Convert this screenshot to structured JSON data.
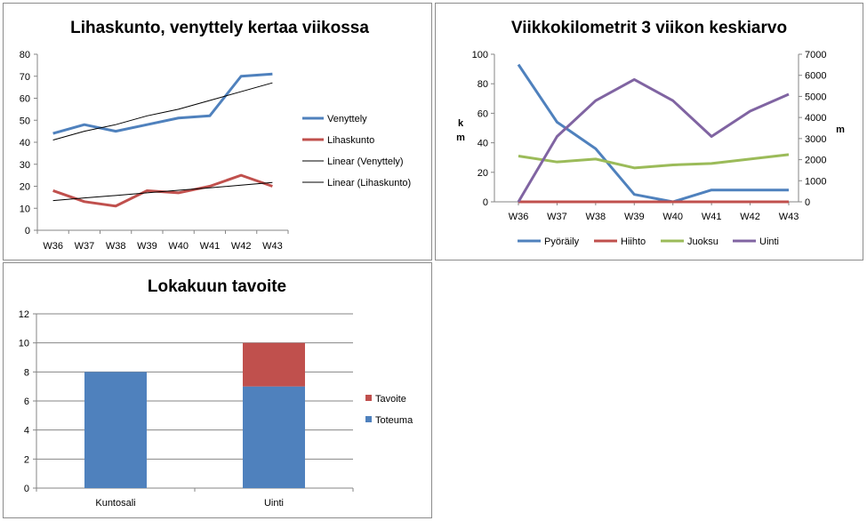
{
  "chart_data": [
    {
      "type": "line",
      "title": "Lihaskunto, venyttely kertaa viikossa",
      "categories": [
        "W36",
        "W37",
        "W38",
        "W39",
        "W40",
        "W41",
        "W42",
        "W43"
      ],
      "ylim": [
        0,
        80
      ],
      "yticks": [
        "0",
        "10",
        "20",
        "30",
        "40",
        "50",
        "60",
        "70",
        "80"
      ],
      "series": [
        {
          "name": "Venyttely",
          "color": "#4f81bd",
          "values": [
            44,
            48,
            45,
            48,
            51,
            52,
            70,
            71
          ]
        },
        {
          "name": "Lihaskunto",
          "color": "#c0504d",
          "values": [
            18,
            13,
            11,
            18,
            17,
            20,
            25,
            20
          ]
        }
      ],
      "trendlines": [
        {
          "name": "Linear (Venyttely)",
          "color": "#000000",
          "values": [
            41,
            45,
            48,
            52,
            55,
            59,
            63,
            67
          ]
        },
        {
          "name": "Linear (Lihaskunto)",
          "color": "#000000",
          "values": [
            13.5,
            14.7,
            15.8,
            17,
            18.2,
            19.3,
            20.5,
            21.7
          ]
        }
      ],
      "legend_position": "right",
      "grid": false
    },
    {
      "type": "line",
      "title": "Viikkokilometrit 3 viikon keskiarvo",
      "categories": [
        "W36",
        "W37",
        "W38",
        "W39",
        "W40",
        "W41",
        "W42",
        "W43"
      ],
      "ylim": [
        0,
        100
      ],
      "yticks": [
        "0",
        "20",
        "40",
        "60",
        "80",
        "100"
      ],
      "ylabel": "km",
      "y2lim": [
        0,
        7000
      ],
      "y2ticks": [
        "0",
        "1000",
        "2000",
        "3000",
        "4000",
        "5000",
        "6000",
        "7000"
      ],
      "y2label": "m",
      "series": [
        {
          "name": "Pyöräily",
          "color": "#4f81bd",
          "axis": "left",
          "values": [
            93,
            54,
            36,
            5,
            0,
            8,
            8,
            8
          ]
        },
        {
          "name": "Hiihto",
          "color": "#c0504d",
          "axis": "left",
          "values": [
            0,
            0,
            0,
            0,
            0,
            0,
            0,
            0
          ]
        },
        {
          "name": "Juoksu",
          "color": "#9bbb59",
          "axis": "left",
          "values": [
            31,
            27,
            29,
            23,
            25,
            26,
            29,
            32
          ]
        },
        {
          "name": "Uinti",
          "color": "#8064a2",
          "axis": "right",
          "values": [
            0,
            3100,
            4800,
            5800,
            4800,
            3100,
            4300,
            5100
          ]
        }
      ],
      "legend_position": "bottom",
      "grid": false
    },
    {
      "type": "bar",
      "stacked": true,
      "title": "Lokakuun tavoite",
      "categories": [
        "Kuntosali",
        "Uinti"
      ],
      "ylim": [
        0,
        12
      ],
      "yticks": [
        "0",
        "2",
        "4",
        "6",
        "8",
        "10",
        "12"
      ],
      "series": [
        {
          "name": "Toteuma",
          "color": "#4f81bd",
          "values": [
            8,
            7
          ]
        },
        {
          "name": "Tavoite",
          "color": "#c0504d",
          "values": [
            0,
            3
          ]
        }
      ],
      "legend_position": "right",
      "grid": true
    }
  ]
}
